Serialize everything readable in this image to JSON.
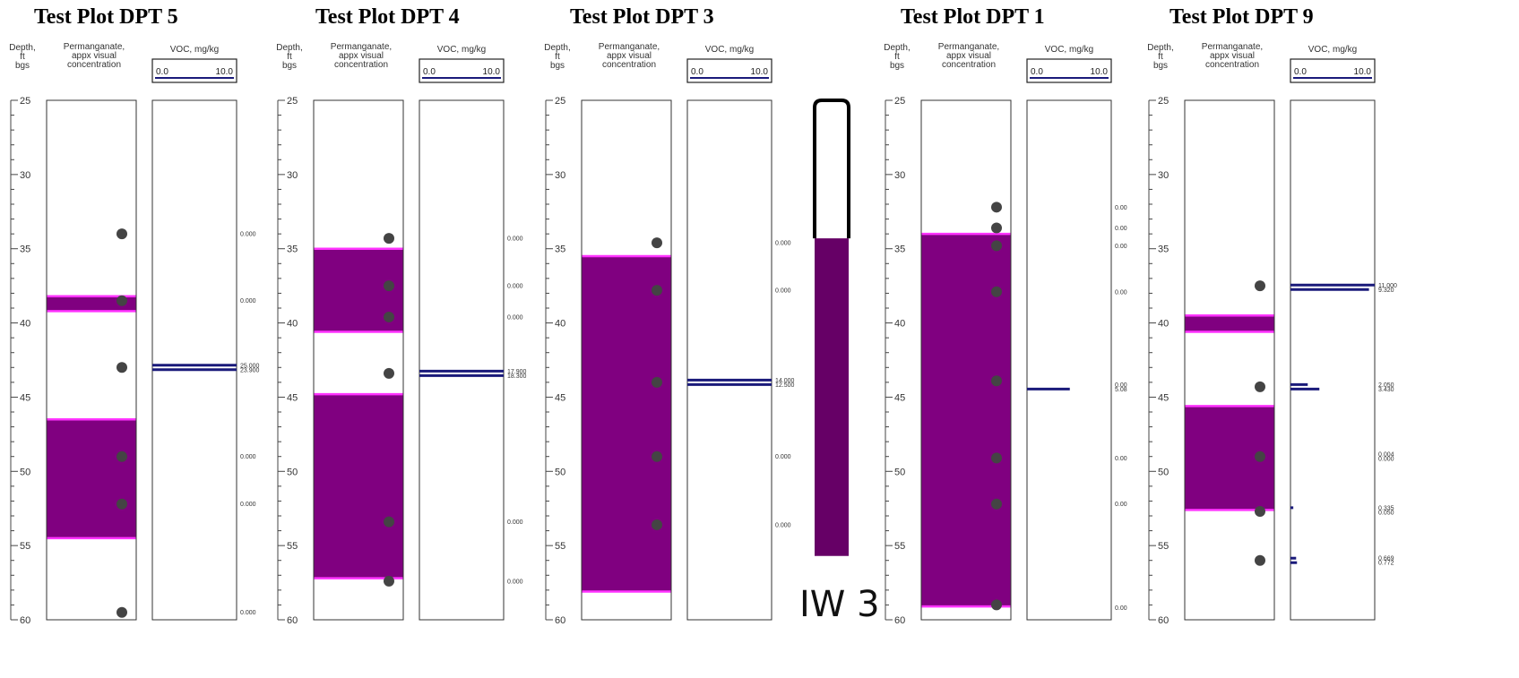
{
  "chart_data": {
    "type": "well-log",
    "depth_range": [
      25,
      60
    ],
    "depth_ticks": [
      25,
      30,
      35,
      40,
      45,
      50,
      55,
      60
    ],
    "headers": {
      "depth": [
        "Depth,",
        "ft",
        "bgs"
      ],
      "permanganate": [
        "Permanganate,",
        "appx visual",
        "concentration"
      ],
      "voc": "VOC, mg/kg",
      "voc_scale_min": "0.0",
      "voc_scale_max": "10.0"
    },
    "voc_axis_max": 10,
    "colors": {
      "permanganate_fill": "#800080",
      "permanganate_edge": "#ff33ff",
      "voc_bar": "#1a1a7a",
      "sample_dot": "#444444"
    },
    "plots": [
      {
        "id": "dpt5",
        "title": "Test Plot DPT 5",
        "purple_zones": [
          [
            38.2,
            39.2
          ],
          [
            46.5,
            54.5
          ]
        ],
        "samples": [
          34,
          38.5,
          43,
          49,
          52.2,
          59.5
        ],
        "voc": [
          {
            "depth": 34,
            "values": [
              {
                "label": "0.000",
                "value": 0
              }
            ]
          },
          {
            "depth": 38.5,
            "values": [
              {
                "label": "0.000",
                "value": 0
              }
            ]
          },
          {
            "depth": 43,
            "values": [
              {
                "label": "25.000",
                "value": 25
              },
              {
                "label": "23.900",
                "value": 23.9
              }
            ]
          },
          {
            "depth": 49,
            "values": [
              {
                "label": "0.000",
                "value": 0
              }
            ]
          },
          {
            "depth": 52.2,
            "values": [
              {
                "label": "0.000",
                "value": 0
              }
            ]
          },
          {
            "depth": 59.5,
            "values": [
              {
                "label": "0.000",
                "value": 0
              }
            ]
          }
        ]
      },
      {
        "id": "dpt4",
        "title": "Test Plot DPT 4",
        "purple_zones": [
          [
            35,
            40.6
          ],
          [
            44.8,
            57.2
          ]
        ],
        "samples": [
          34.3,
          37.5,
          39.6,
          43.4,
          53.4,
          57.4
        ],
        "voc": [
          {
            "depth": 34.3,
            "values": [
              {
                "label": "0.000",
                "value": 0
              }
            ]
          },
          {
            "depth": 37.5,
            "values": [
              {
                "label": "0.000",
                "value": 0
              }
            ]
          },
          {
            "depth": 39.6,
            "values": [
              {
                "label": "0.000",
                "value": 0
              }
            ]
          },
          {
            "depth": 43.4,
            "values": [
              {
                "label": "17.900",
                "value": 17.9
              },
              {
                "label": "18.300",
                "value": 18.3
              }
            ]
          },
          {
            "depth": 53.4,
            "values": [
              {
                "label": "0.000",
                "value": 0
              }
            ]
          },
          {
            "depth": 57.4,
            "values": [
              {
                "label": "0.000",
                "value": 0
              }
            ]
          }
        ]
      },
      {
        "id": "dpt3",
        "title": "Test Plot DPT 3",
        "purple_zones": [
          [
            35.5,
            58.1
          ]
        ],
        "samples": [
          34.6,
          37.8,
          44,
          49,
          53.6
        ],
        "voc": [
          {
            "depth": 34.6,
            "values": [
              {
                "label": "0.000",
                "value": 0
              }
            ]
          },
          {
            "depth": 37.8,
            "values": [
              {
                "label": "0.000",
                "value": 0
              }
            ]
          },
          {
            "depth": 44,
            "values": [
              {
                "label": "14.000",
                "value": 14
              },
              {
                "label": "12.500",
                "value": 12.5
              }
            ]
          },
          {
            "depth": 49,
            "values": [
              {
                "label": "0.000",
                "value": 0
              }
            ]
          },
          {
            "depth": 53.6,
            "values": [
              {
                "label": "0.000",
                "value": 0
              }
            ]
          }
        ]
      },
      {
        "id": "dpt1",
        "title": "Test Plot DPT 1",
        "purple_zones": [
          [
            34,
            59.1
          ]
        ],
        "samples": [
          32.2,
          33.6,
          34.8,
          37.9,
          43.9,
          49.1,
          52.2,
          59
        ],
        "voc": [
          {
            "depth": 32.2,
            "values": [
              {
                "label": "0.00",
                "value": 0
              }
            ]
          },
          {
            "depth": 33.6,
            "values": [
              {
                "label": "0.00",
                "value": 0
              }
            ]
          },
          {
            "depth": 34.8,
            "values": [
              {
                "label": "0.00",
                "value": 0
              }
            ]
          },
          {
            "depth": 37.9,
            "values": [
              {
                "label": "0.00",
                "value": 0
              }
            ]
          },
          {
            "depth": 44.3,
            "values": [
              {
                "label": "0.00",
                "value": 0
              },
              {
                "label": "5.08",
                "value": 5.08
              }
            ]
          },
          {
            "depth": 49.1,
            "values": [
              {
                "label": "0.00",
                "value": 0
              }
            ]
          },
          {
            "depth": 52.2,
            "values": [
              {
                "label": "0.00",
                "value": 0
              }
            ]
          },
          {
            "depth": 59.2,
            "values": [
              {
                "label": "0.00",
                "value": 0
              }
            ]
          }
        ]
      },
      {
        "id": "dpt9",
        "title": "Test Plot DPT 9",
        "purple_zones": [
          [
            39.5,
            40.6
          ],
          [
            45.6,
            52.6
          ]
        ],
        "samples": [
          37.5,
          44.3,
          49,
          52.7,
          56
        ],
        "voc": [
          {
            "depth": 37.6,
            "values": [
              {
                "label": "11.000",
                "value": 11
              },
              {
                "label": "9.320",
                "value": 9.32
              }
            ]
          },
          {
            "depth": 44.3,
            "values": [
              {
                "label": "2.050",
                "value": 2.05
              },
              {
                "label": "3.430",
                "value": 3.43
              }
            ]
          },
          {
            "depth": 49,
            "values": [
              {
                "label": "0.004",
                "value": 0.004
              },
              {
                "label": "0.000",
                "value": 0
              }
            ]
          },
          {
            "depth": 52.6,
            "values": [
              {
                "label": "0.335",
                "value": 0.335
              },
              {
                "label": "0.050",
                "value": 0.05
              }
            ]
          },
          {
            "depth": 56,
            "values": [
              {
                "label": "0.669",
                "value": 0.669
              },
              {
                "label": "0.772",
                "value": 0.772
              }
            ]
          }
        ]
      }
    ],
    "well": {
      "label": "IW 3",
      "fill_color": "#660066",
      "screen_top_depth": 34.3,
      "bottom_depth": 55.7,
      "top_depth": 25
    }
  }
}
